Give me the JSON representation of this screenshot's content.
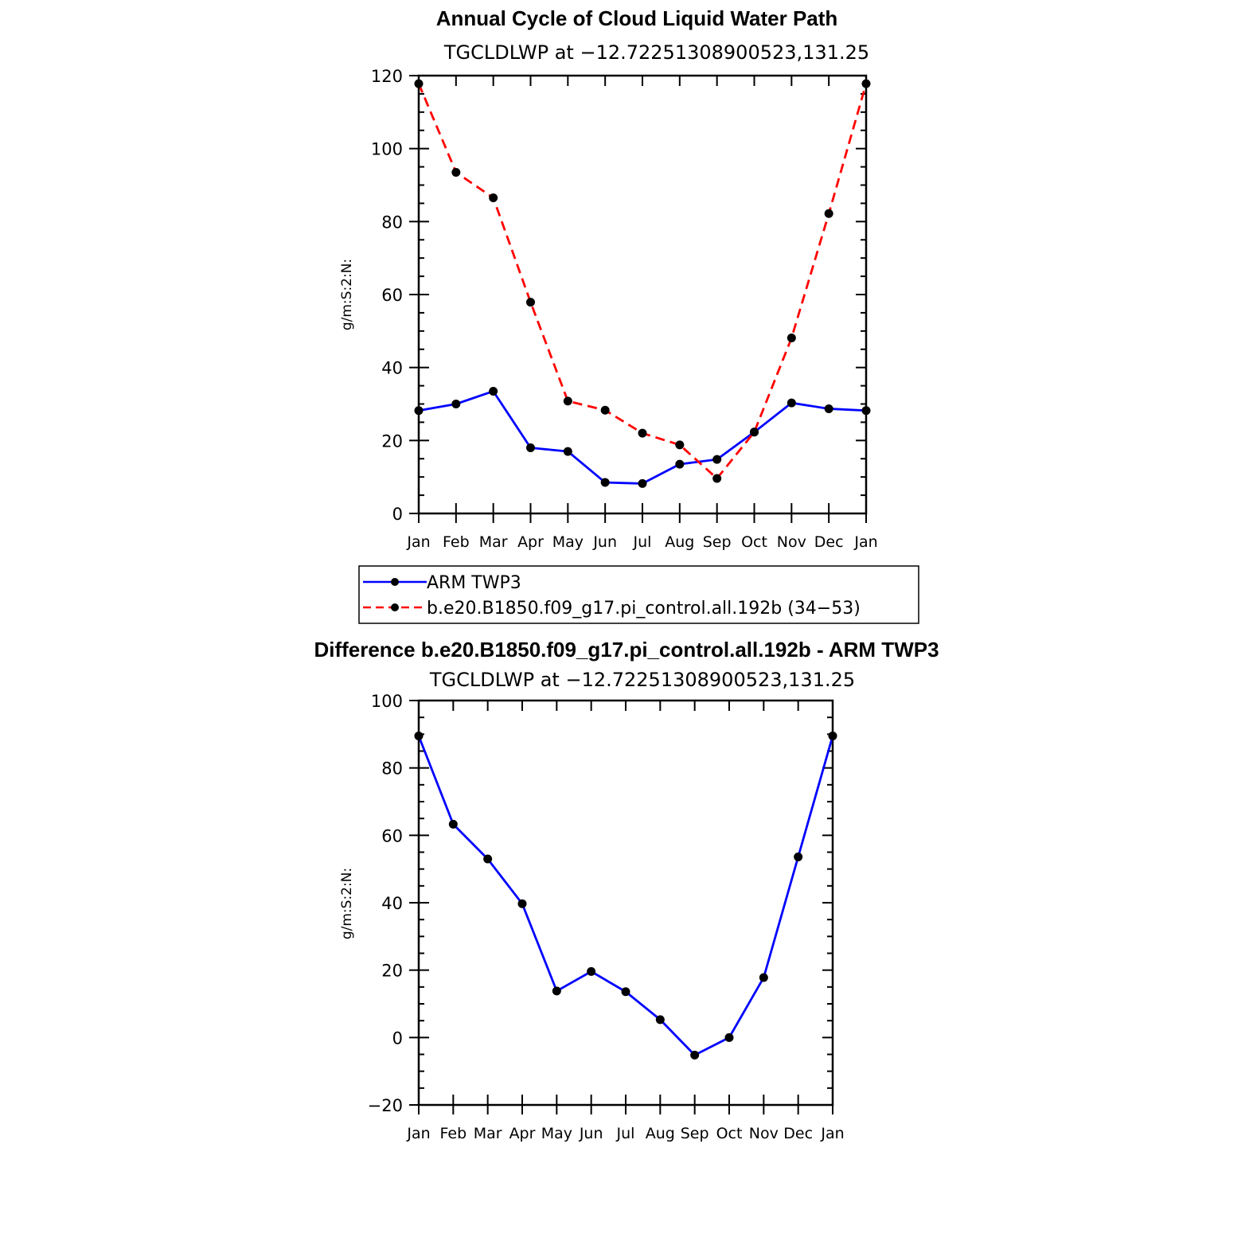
{
  "chart_data": [
    {
      "type": "line",
      "title": "Annual Cycle of Cloud Liquid Water Path",
      "subtitle": "TGCLDLWP at −12.72251308900523,131.25",
      "ylabel": "g/m:S:2:N:",
      "xlabel": "",
      "categories": [
        "Jan",
        "Feb",
        "Mar",
        "Apr",
        "May",
        "Jun",
        "Jul",
        "Aug",
        "Sep",
        "Oct",
        "Nov",
        "Dec",
        "Jan"
      ],
      "ylim": [
        0,
        120
      ],
      "yticks": [
        0,
        20,
        40,
        60,
        80,
        100,
        120
      ],
      "series": [
        {
          "name": "ARM TWP3",
          "color": "#0000ff",
          "dashed": false,
          "values": [
            28.2,
            30.0,
            33.5,
            18.0,
            17.0,
            8.5,
            8.2,
            13.5,
            14.8,
            22.3,
            30.3,
            28.7,
            28.2
          ]
        },
        {
          "name": "b.e20.B1850.f09_g17.pi_control.all.192b (34−53)",
          "color": "#ff0000",
          "dashed": true,
          "values": [
            117.8,
            93.5,
            86.5,
            57.9,
            30.8,
            28.3,
            22.0,
            18.8,
            9.6,
            22.3,
            48.1,
            82.2,
            117.8
          ]
        }
      ],
      "legend_placement": "below"
    },
    {
      "type": "line",
      "title": "Difference b.e20.B1850.f09_g17.pi_control.all.192b - ARM TWP3",
      "subtitle": "TGCLDLWP at −12.72251308900523,131.25",
      "ylabel": "g/m:S:2:N:",
      "xlabel": "",
      "categories": [
        "Jan",
        "Feb",
        "Mar",
        "Apr",
        "May",
        "Jun",
        "Jul",
        "Aug",
        "Sep",
        "Oct",
        "Nov",
        "Dec",
        "Jan"
      ],
      "ylim": [
        -20,
        100
      ],
      "yticks": [
        -20,
        0,
        20,
        40,
        60,
        80,
        100
      ],
      "ytick_labels": [
        "−20",
        "0",
        "20",
        "40",
        "60",
        "80",
        "100"
      ],
      "series": [
        {
          "color": "#0000ff",
          "dashed": false,
          "values": [
            89.5,
            63.3,
            53.0,
            39.7,
            13.8,
            19.6,
            13.6,
            5.3,
            -5.2,
            0.0,
            17.8,
            53.6,
            89.5
          ]
        }
      ]
    }
  ]
}
